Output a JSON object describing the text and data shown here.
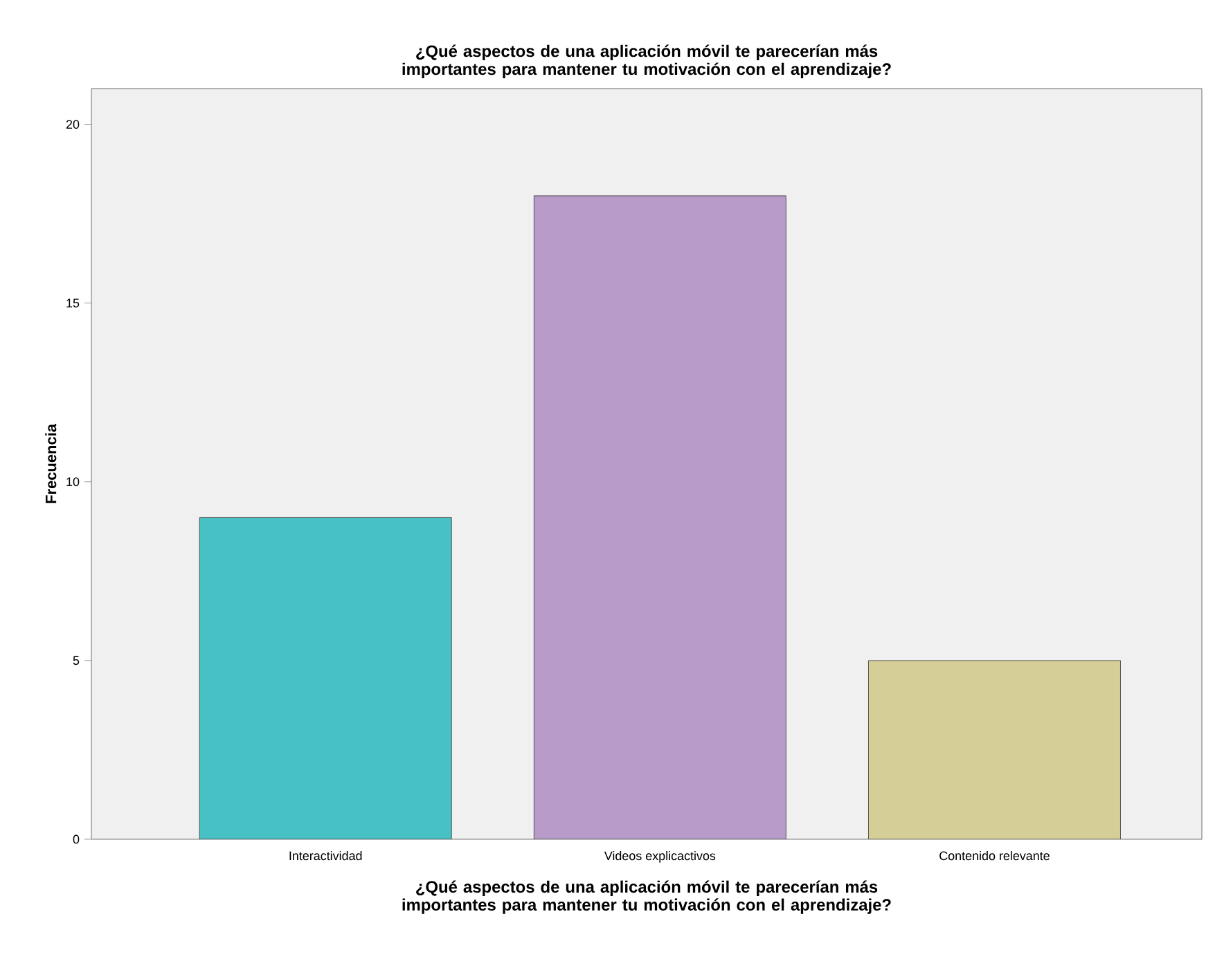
{
  "chart_data": {
    "type": "bar",
    "title": "¿Qué aspectos de una aplicación móvil te parecerían más importantes para mantener tu motivación con el aprendizaje?",
    "xlabel": "¿Qué aspectos de una aplicación móvil te parecerían más importantes para mantener tu motivación con el aprendizaje?",
    "ylabel": "Frecuencia",
    "categories": [
      "Interactividad",
      "Videos explicactivos",
      "Contenido relevante"
    ],
    "values": [
      9,
      18,
      5
    ],
    "colors": [
      "#48c1c4",
      "#b89bc9",
      "#d5cf97"
    ],
    "ylim": [
      0,
      21
    ],
    "yticks": [
      0,
      5,
      10,
      15,
      20
    ]
  }
}
